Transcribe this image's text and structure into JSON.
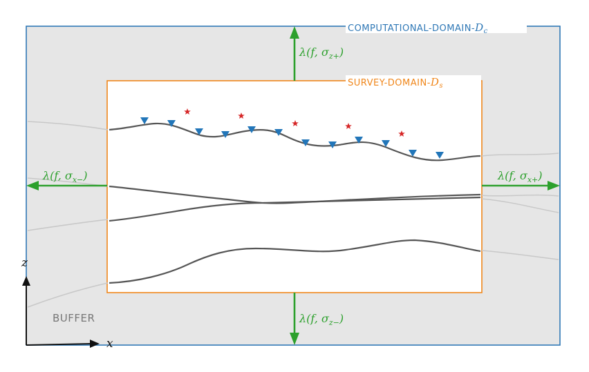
{
  "labels": {
    "computational_domain": "COMPUTATIONAL-DOMAIN-",
    "computational_symbol": "D",
    "computational_sub": "c",
    "survey_domain": "SURVEY-DOMAIN-",
    "survey_symbol": "D",
    "survey_sub": "s",
    "buffer": "BUFFER",
    "axis_x": "x",
    "axis_z": "z"
  },
  "arrows": {
    "top": {
      "prefix": "λ(f, σ",
      "sub": "z+",
      "suffix": ")"
    },
    "bottom": {
      "prefix": "λ(f, σ",
      "sub": "z−",
      "suffix": ")"
    },
    "left": {
      "prefix": "λ(f, σ",
      "sub": "x−",
      "suffix": ")"
    },
    "right": {
      "prefix": "λ(f, σ",
      "sub": "x+",
      "suffix": ")"
    }
  },
  "colors": {
    "computational_border": "#2f78b6",
    "survey_border": "#f0861a",
    "buffer_fill": "#e6e6e6",
    "arrow": "#2ca02c",
    "layer": "#555555",
    "layer_buffer": "#c8c8c8",
    "receiver": "#2276b9",
    "source": "#d62728",
    "axis": "#111111",
    "buffer_text": "#777777"
  },
  "markers": {
    "receiver_icon": "triangle-down-icon",
    "source_icon": "star-icon"
  }
}
